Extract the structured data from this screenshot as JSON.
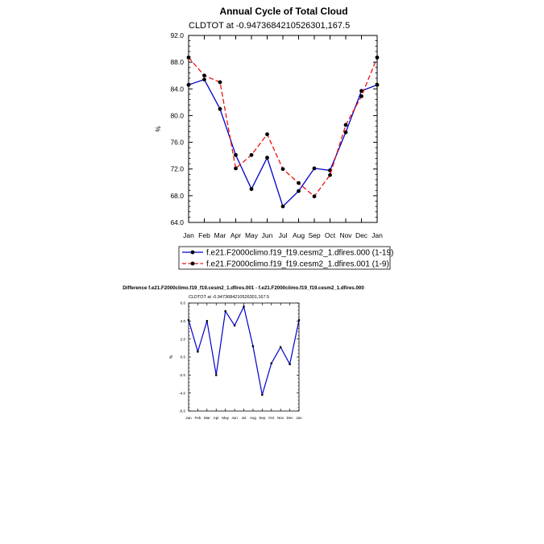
{
  "chart_data": [
    {
      "type": "line",
      "title": "Annual Cycle of Total Cloud",
      "subtitle": "CLDTOT at -0.9473684210526301,167.5",
      "xlabel": "",
      "ylabel": "%",
      "categories": [
        "Jan",
        "Feb",
        "Mar",
        "Apr",
        "May",
        "Jun",
        "Jul",
        "Aug",
        "Sep",
        "Oct",
        "Nov",
        "Dec",
        "Jan"
      ],
      "ylim": [
        64.0,
        92.0
      ],
      "yticks": [
        "64.0",
        "68.0",
        "72.0",
        "76.0",
        "80.0",
        "84.0",
        "88.0",
        "92.0"
      ],
      "legend_position": "bottom",
      "series": [
        {
          "name": "f.e21.F2000climo.f19_f19.cesm2_1.dfires.000 (1-19)",
          "color": "#0000cc",
          "dash": "solid",
          "values": [
            84.6,
            85.4,
            81.0,
            74.1,
            69.0,
            73.7,
            66.4,
            68.7,
            72.1,
            71.8,
            77.5,
            83.7,
            84.6
          ]
        },
        {
          "name": "f.e21.F2000climo.f19_f19.cesm2_1.dfires.001 (1-9)",
          "color": "#ee1111",
          "dash": "dashed",
          "values": [
            88.7,
            86.0,
            85.0,
            72.1,
            74.1,
            77.2,
            72.0,
            69.9,
            67.9,
            71.1,
            78.6,
            82.9,
            88.7
          ]
        }
      ]
    },
    {
      "type": "line",
      "title": "Difference f.e21.F2000climo.f19_f19.cesm2_1.dfires.001 - f.e21.F2000climo.f19_f19.cesm2_1.dfires.000",
      "subtitle": "CLDTOT at -0.9473684210526301,167.5",
      "xlabel": "",
      "ylabel": "%",
      "categories": [
        "Jan",
        "Feb",
        "Mar",
        "Apr",
        "May",
        "Jun",
        "Jul",
        "Aug",
        "Sep",
        "Oct",
        "Nov",
        "Dec",
        "Jan"
      ],
      "ylim": [
        -6.0,
        6.0
      ],
      "yticks": [
        "-6.0",
        "-4.0",
        "-2.0",
        "0.0",
        "2.0",
        "4.0",
        "6.0"
      ],
      "series": [
        {
          "name": "difference",
          "color": "#0000cc",
          "dash": "solid",
          "values": [
            4.1,
            0.6,
            4.0,
            -2.0,
            5.1,
            3.5,
            5.6,
            1.2,
            -4.2,
            -0.7,
            1.1,
            -0.8,
            4.1
          ]
        }
      ]
    }
  ]
}
